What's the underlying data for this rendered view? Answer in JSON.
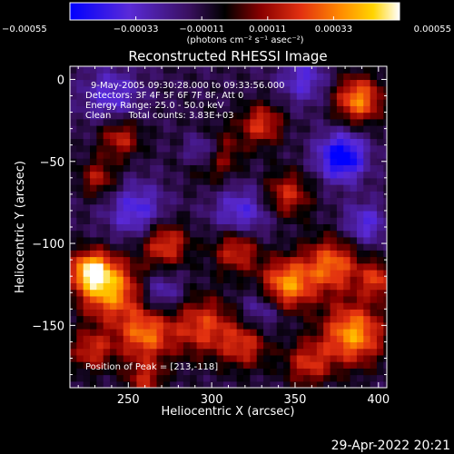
{
  "chart_data": {
    "type": "heatmap",
    "title": "Reconstructed RHESSI Image",
    "xlabel": "Heliocentric X (arcsec)",
    "ylabel": "Heliocentric Y (arcsec)",
    "xlim": [
      215,
      405
    ],
    "ylim": [
      -188,
      8
    ],
    "x_ticks": [
      250,
      300,
      350,
      400
    ],
    "x_tick_labels": [
      "250",
      "300",
      "350",
      "400"
    ],
    "y_ticks": [
      0,
      -50,
      -100,
      -150
    ],
    "y_tick_labels": [
      "0",
      "−50",
      "−100",
      "−150"
    ],
    "colorbar": {
      "range": [
        -0.00055,
        0.00055
      ],
      "ticks": [
        -0.00055,
        -0.00033,
        -0.00011,
        0.00011,
        0.00033,
        0.00055
      ],
      "tick_labels": [
        "−0.00055",
        "−0.00033",
        "−0.00011",
        "0.00011",
        "0.00033",
        "0.00055"
      ],
      "unit_text": "(photons cm⁻² s⁻¹ asec⁻²)",
      "colormap": [
        "#0000ff",
        "#5a2ad8",
        "#3a1060",
        "#000000",
        "#8a0000",
        "#e23010",
        "#ff8a00",
        "#ffd400",
        "#ffffff"
      ]
    },
    "annotations": [
      "9-May-2005 09:30:28.000 to 09:33:56.000",
      "Detectors: 3F 4F 5F 6F 7F 8F, Att 0",
      "Energy Range: 25.0 - 50.0 keV",
      "Clean      Total counts: 3.83E+03"
    ],
    "peak_label": "Position of Peak = [213,-118]",
    "peak_position": [
      213,
      -118
    ],
    "field": {
      "background": -0.00012,
      "grid_step_arcsec": 4,
      "hot_sources": [
        {
          "x": 238,
          "y": -127,
          "value": 0.00052,
          "sigma": 13
        },
        {
          "x": 227,
          "y": -116,
          "value": 0.00047,
          "sigma": 8
        },
        {
          "x": 260,
          "y": -155,
          "value": 0.00042,
          "sigma": 12
        },
        {
          "x": 272,
          "y": -100,
          "value": 0.00036,
          "sigma": 10
        },
        {
          "x": 300,
          "y": -45,
          "value": 0.00038,
          "sigma": 11
        },
        {
          "x": 315,
          "y": -103,
          "value": 0.00035,
          "sigma": 10
        },
        {
          "x": 295,
          "y": -150,
          "value": 0.00034,
          "sigma": 13
        },
        {
          "x": 320,
          "y": -162,
          "value": 0.0003,
          "sigma": 10
        },
        {
          "x": 330,
          "y": -27,
          "value": 0.00033,
          "sigma": 9
        },
        {
          "x": 345,
          "y": -70,
          "value": 0.00031,
          "sigma": 10
        },
        {
          "x": 345,
          "y": -125,
          "value": 0.00048,
          "sigma": 11
        },
        {
          "x": 372,
          "y": -113,
          "value": 0.00041,
          "sigma": 12
        },
        {
          "x": 388,
          "y": -12,
          "value": 0.00046,
          "sigma": 10
        },
        {
          "x": 385,
          "y": -155,
          "value": 0.0005,
          "sigma": 13
        },
        {
          "x": 358,
          "y": -173,
          "value": 0.0003,
          "sigma": 10
        },
        {
          "x": 400,
          "y": -122,
          "value": 0.00032,
          "sigma": 8
        },
        {
          "x": 245,
          "y": -35,
          "value": 0.0003,
          "sigma": 9
        },
        {
          "x": 228,
          "y": -165,
          "value": 0.0003,
          "sigma": 9
        },
        {
          "x": 232,
          "y": -60,
          "value": 0.00026,
          "sigma": 8
        },
        {
          "x": 260,
          "y": -183,
          "value": 0.00026,
          "sigma": 8
        }
      ],
      "cold_sources": [
        {
          "x": 295,
          "y": -43,
          "value": -0.00045,
          "sigma": 8
        },
        {
          "x": 378,
          "y": -47,
          "value": -0.00048,
          "sigma": 10
        },
        {
          "x": 318,
          "y": -82,
          "value": -0.00028,
          "sigma": 12
        },
        {
          "x": 255,
          "y": -80,
          "value": -0.00028,
          "sigma": 12
        },
        {
          "x": 240,
          "y": -10,
          "value": -0.00025,
          "sigma": 12
        },
        {
          "x": 392,
          "y": -88,
          "value": -0.00026,
          "sigma": 9
        },
        {
          "x": 270,
          "y": -130,
          "value": -0.00022,
          "sigma": 9
        },
        {
          "x": 330,
          "y": -140,
          "value": -0.0002,
          "sigma": 9
        },
        {
          "x": 355,
          "y": 0,
          "value": -0.00024,
          "sigma": 10
        }
      ]
    }
  },
  "footer": {
    "timestamp": "29-Apr-2022 20:21"
  }
}
